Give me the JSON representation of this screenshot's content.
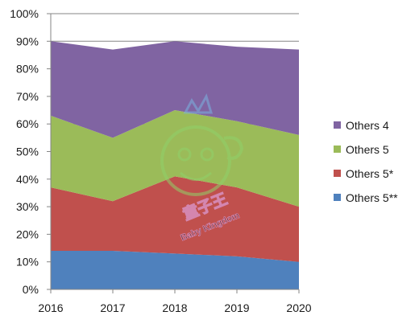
{
  "chart_data": {
    "type": "area",
    "stacked": true,
    "categories": [
      "2016",
      "2017",
      "2018",
      "2019",
      "2020"
    ],
    "series": [
      {
        "name": "Others 5**",
        "color": "#4f81bd",
        "values": [
          14,
          14,
          13,
          12,
          10
        ]
      },
      {
        "name": "Others 5*",
        "color": "#c0504d",
        "values": [
          23,
          18,
          28,
          25,
          20
        ]
      },
      {
        "name": "Others 5",
        "color": "#9bbb59",
        "values": [
          26,
          23,
          24,
          24,
          26
        ]
      },
      {
        "name": "Others 4",
        "color": "#8064a2",
        "values": [
          27,
          32,
          25,
          27,
          31
        ]
      }
    ],
    "ylim": [
      0,
      100
    ],
    "y_ticks": [
      "0%",
      "10%",
      "20%",
      "30%",
      "40%",
      "50%",
      "60%",
      "70%",
      "80%",
      "90%",
      "100%"
    ],
    "y_format": "percent",
    "grid": "horizontal",
    "legend_position": "right",
    "legend_order": [
      "Others 4",
      "Others 5",
      "Others 5*",
      "Others 5**"
    ],
    "title": "",
    "xlabel": "",
    "ylabel": ""
  },
  "watermark": {
    "text_cn": "童子王",
    "text_en": "Baby Kingdom",
    "color": "#8fd16a"
  }
}
